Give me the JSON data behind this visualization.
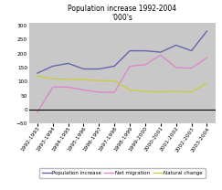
{
  "title": "Population increase 1992-2004",
  "subtitle": "'000's",
  "x_labels": [
    "1992-1993",
    "1993-1994",
    "1994-1995",
    "1995-1996",
    "1996-1997",
    "1997-1998",
    "1998-1999",
    "1999-2000",
    "2000-2001",
    "2001-2002",
    "2002-2003",
    "2003-2004"
  ],
  "population_increase": [
    130,
    155,
    165,
    145,
    145,
    155,
    210,
    210,
    205,
    230,
    210,
    280
  ],
  "net_migration": [
    -10,
    80,
    80,
    70,
    62,
    62,
    155,
    160,
    195,
    150,
    148,
    185
  ],
  "natural_change": [
    120,
    110,
    108,
    107,
    103,
    103,
    70,
    65,
    63,
    65,
    63,
    93
  ],
  "pop_color": "#6666aa",
  "mig_color": "#dd88cc",
  "nat_color": "#cccc44",
  "fig_bg_color": "#ffffff",
  "plot_bg_color": "#c8c8c8",
  "ylim": [
    -50,
    310
  ],
  "yticks": [
    -50,
    0,
    50,
    100,
    150,
    200,
    250,
    300
  ],
  "title_fontsize": 5.5,
  "tick_fontsize": 4.2,
  "legend_fontsize": 4.0,
  "line_width": 1.0
}
